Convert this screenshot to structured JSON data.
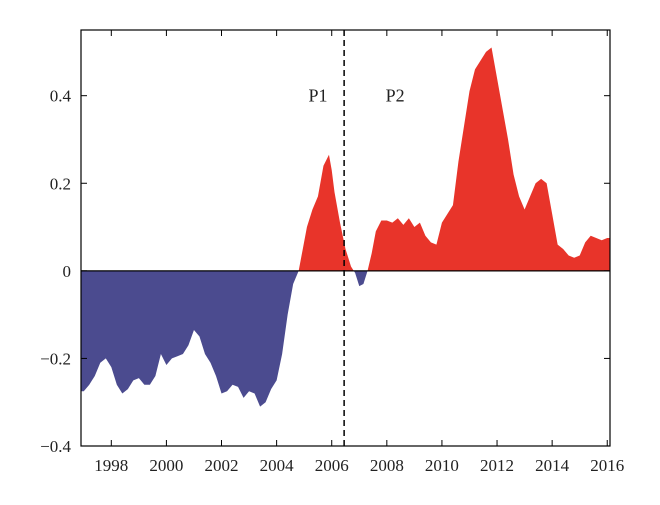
{
  "chart_data": {
    "type": "area",
    "title": "",
    "xlabel": "",
    "ylabel": "",
    "xlim": [
      1996.9,
      2016.1
    ],
    "ylim": [
      -0.4,
      0.55
    ],
    "x_ticks": [
      1998,
      2000,
      2002,
      2004,
      2006,
      2008,
      2010,
      2012,
      2014,
      2016
    ],
    "x_tick_labels": [
      "1998",
      "2000",
      "2002",
      "2004",
      "2006",
      "2008",
      "2010",
      "2012",
      "2014",
      "2016"
    ],
    "y_ticks": [
      -0.4,
      -0.2,
      0,
      0.2,
      0.4
    ],
    "y_tick_labels": [
      "−0.4",
      "−0.2",
      "0",
      "0.2",
      "0.4"
    ],
    "positive_color": "#e8342a",
    "negative_color": "#4b4b8f",
    "divider_x": 2006.45,
    "annotations": [
      {
        "text": "P1",
        "x": 2005.5,
        "y": 0.4
      },
      {
        "text": "P2",
        "x": 2008.3,
        "y": 0.4
      }
    ],
    "series": [
      {
        "x": [
          1996.9,
          1997.0,
          1997.2,
          1997.4,
          1997.6,
          1997.8,
          1998.0,
          1998.2,
          1998.4,
          1998.6,
          1998.8,
          1999.0,
          1999.2,
          1999.4,
          1999.6,
          1999.8,
          2000.0,
          2000.2,
          2000.4,
          2000.6,
          2000.8,
          2001.0,
          2001.2,
          2001.4,
          2001.6,
          2001.8,
          2002.0,
          2002.2,
          2002.4,
          2002.6,
          2002.8,
          2003.0,
          2003.2,
          2003.4,
          2003.6,
          2003.8,
          2004.0,
          2004.2,
          2004.4,
          2004.6,
          2004.8,
          2004.95,
          2005.1,
          2005.3,
          2005.5,
          2005.7,
          2005.9,
          2006.0,
          2006.1,
          2006.3,
          2006.5,
          2006.7,
          2006.85,
          2007.0,
          2007.15,
          2007.3,
          2007.45,
          2007.6,
          2007.8,
          2008.0,
          2008.2,
          2008.4,
          2008.6,
          2008.8,
          2009.0,
          2009.2,
          2009.4,
          2009.6,
          2009.8,
          2010.0,
          2010.2,
          2010.4,
          2010.6,
          2010.8,
          2011.0,
          2011.2,
          2011.4,
          2011.6,
          2011.8,
          2012.0,
          2012.2,
          2012.4,
          2012.6,
          2012.8,
          2013.0,
          2013.2,
          2013.4,
          2013.6,
          2013.8,
          2014.0,
          2014.2,
          2014.4,
          2014.6,
          2014.8,
          2015.0,
          2015.2,
          2015.4,
          2015.6,
          2015.8,
          2016.0,
          2016.1
        ],
        "values": [
          -0.275,
          -0.275,
          -0.26,
          -0.24,
          -0.21,
          -0.2,
          -0.22,
          -0.26,
          -0.28,
          -0.27,
          -0.25,
          -0.245,
          -0.26,
          -0.26,
          -0.24,
          -0.19,
          -0.215,
          -0.2,
          -0.195,
          -0.19,
          -0.17,
          -0.135,
          -0.15,
          -0.19,
          -0.21,
          -0.24,
          -0.28,
          -0.275,
          -0.26,
          -0.265,
          -0.29,
          -0.275,
          -0.28,
          -0.31,
          -0.3,
          -0.27,
          -0.25,
          -0.19,
          -0.1,
          -0.03,
          0.0,
          0.05,
          0.1,
          0.14,
          0.17,
          0.24,
          0.265,
          0.23,
          0.18,
          0.11,
          0.05,
          0.01,
          -0.005,
          -0.035,
          -0.03,
          0.0,
          0.04,
          0.09,
          0.115,
          0.115,
          0.11,
          0.12,
          0.105,
          0.12,
          0.1,
          0.11,
          0.08,
          0.065,
          0.06,
          0.11,
          0.13,
          0.15,
          0.25,
          0.33,
          0.41,
          0.46,
          0.48,
          0.5,
          0.51,
          0.44,
          0.37,
          0.3,
          0.22,
          0.17,
          0.14,
          0.17,
          0.2,
          0.21,
          0.2,
          0.13,
          0.06,
          0.05,
          0.035,
          0.03,
          0.035,
          0.065,
          0.08,
          0.075,
          0.07,
          0.075,
          0.075
        ]
      }
    ]
  }
}
